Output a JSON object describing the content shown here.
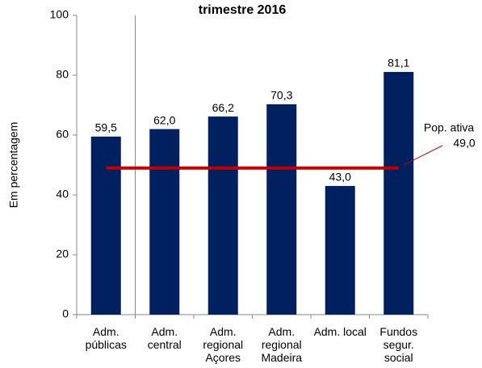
{
  "chart_data": {
    "type": "bar",
    "title": "trimestre 2016",
    "y_label": "Em percentagem",
    "categories": [
      "Adm. públicas",
      "Adm. central",
      "Adm. regional Açores",
      "Adm. regional Madeira",
      "Adm. local",
      "Fundos segur. social"
    ],
    "values": [
      59.5,
      62.0,
      66.2,
      70.3,
      43.0,
      81.1
    ],
    "value_labels": [
      "59,5",
      "62,0",
      "66,2",
      "70,3",
      "43,0",
      "81,1"
    ],
    "color": "#002060",
    "ylim": [
      0,
      100
    ],
    "yticks": [
      0,
      20,
      40,
      60,
      80,
      100
    ],
    "grid": false,
    "reference_line": {
      "name": "Pop. ativa",
      "value": 49.0,
      "value_label": "49,0",
      "color": "#c00000"
    }
  }
}
